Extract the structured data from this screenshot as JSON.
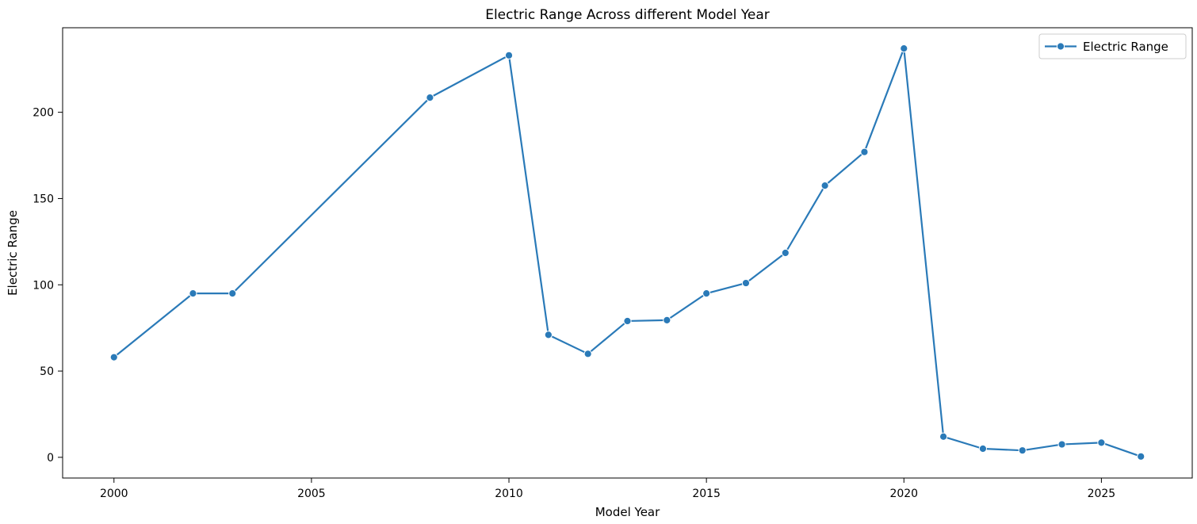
{
  "chart_data": {
    "type": "line",
    "title": "Electric Range Across different Model Year",
    "xlabel": "Model Year",
    "ylabel": "Electric Range",
    "xlim": [
      1998.7,
      2027.3
    ],
    "ylim": [
      -12,
      249
    ],
    "xticks": [
      2000,
      2005,
      2010,
      2015,
      2020,
      2025
    ],
    "yticks": [
      0,
      50,
      100,
      150,
      200
    ],
    "grid": false,
    "legend_position": "top-right",
    "series": [
      {
        "name": "Electric Range",
        "color": "#2a7ab8",
        "marker": "circle",
        "x": [
          2000,
          2002,
          2003,
          2008,
          2010,
          2011,
          2012,
          2013,
          2014,
          2015,
          2016,
          2017,
          2018,
          2019,
          2020,
          2021,
          2022,
          2023,
          2024,
          2025,
          2026
        ],
        "y": [
          58,
          95,
          95,
          208.5,
          233,
          71,
          60,
          79,
          79.5,
          95,
          101,
          118.5,
          157.5,
          177,
          237,
          12,
          5,
          4,
          7.5,
          8.5,
          0.5
        ]
      }
    ]
  }
}
